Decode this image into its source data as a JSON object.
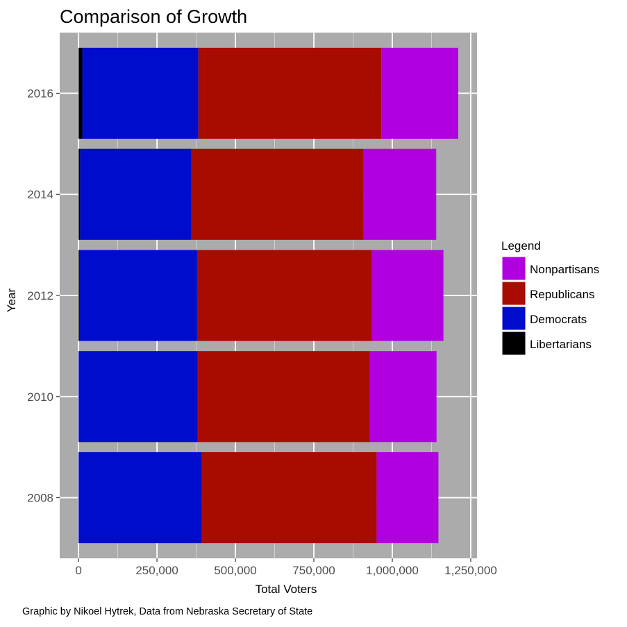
{
  "chart_data": {
    "type": "bar",
    "orientation": "horizontal",
    "stacked": true,
    "title": "Comparison of Growth",
    "xlabel": "Total Voters",
    "ylabel": "Year",
    "caption": "Graphic by Nikoel Hytrek, Data from Nebraska Secretary of State",
    "categories": [
      "2008",
      "2010",
      "2012",
      "2014",
      "2016"
    ],
    "xlim": [
      -60000,
      1270000
    ],
    "xticks": [
      0,
      250000,
      500000,
      750000,
      1000000,
      1250000
    ],
    "xtick_labels": [
      "0",
      "250,000",
      "500,000",
      "750,000",
      "1,000,000",
      "1,250,000"
    ],
    "grid": true,
    "legend": {
      "title": "Legend",
      "position": "right",
      "order": [
        "Nonpartisans",
        "Republicans",
        "Democrats",
        "Libertarians"
      ]
    },
    "series": [
      {
        "name": "Libertarians",
        "color": "#000000",
        "values": [
          0,
          0,
          3000,
          5000,
          12000
        ]
      },
      {
        "name": "Democrats",
        "color": "#000ccc",
        "values": [
          393000,
          380000,
          375000,
          355000,
          370000
        ]
      },
      {
        "name": "Republicans",
        "color": "#a80b00",
        "values": [
          557000,
          548000,
          557000,
          548000,
          583000
        ]
      },
      {
        "name": "Nonpartisans",
        "color": "#b000e0",
        "values": [
          197000,
          213000,
          228000,
          232000,
          245000
        ]
      }
    ]
  }
}
